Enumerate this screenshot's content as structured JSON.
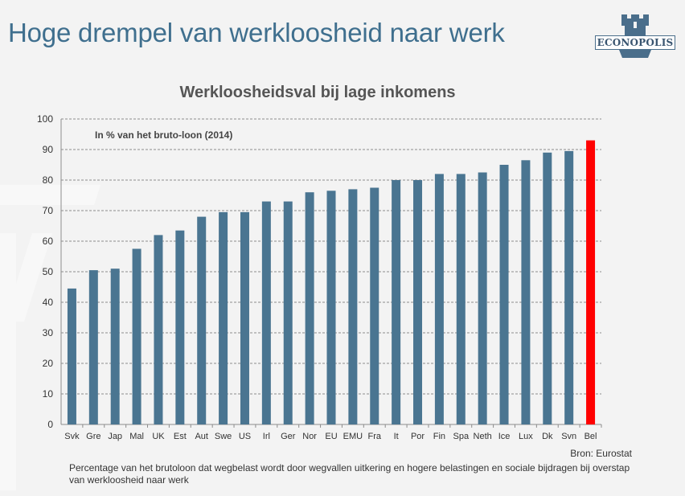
{
  "slide": {
    "title": "Hoge drempel van werkloosheid naar werk",
    "logo_text": "ECONOPOLIS",
    "source": "Bron: Eurostat",
    "footnote": "Percentage van het brutoloon dat wegbelast wordt door wegvallen uitkering en hogere belastingen en sociale bijdragen bij overstap van werkloosheid naar werk"
  },
  "colors": {
    "title": "#3f6f8e",
    "bar": "#4a7591",
    "highlight": "#ff0000",
    "logo": "#4a6e8b"
  },
  "chart_data": {
    "type": "bar",
    "title": "Werkloosheidsval bij lage inkomens",
    "subtitle": "In % van het bruto-loon (2014)",
    "xlabel": "",
    "ylabel": "",
    "ylim": [
      0,
      100
    ],
    "yticks": [
      0,
      10,
      20,
      30,
      40,
      50,
      60,
      70,
      80,
      90,
      100
    ],
    "grid": true,
    "legend": "none",
    "categories": [
      "Svk",
      "Gre",
      "Jap",
      "Mal",
      "UK",
      "Est",
      "Aut",
      "Swe",
      "US",
      "Irl",
      "Ger",
      "Nor",
      "EU",
      "EMU",
      "Fra",
      "It",
      "Por",
      "Fin",
      "Spa",
      "Neth",
      "Ice",
      "Lux",
      "Dk",
      "Svn",
      "Bel"
    ],
    "values": [
      44.5,
      50.5,
      51,
      57.5,
      62,
      63.5,
      68,
      69.5,
      69.5,
      73,
      73,
      76,
      76.5,
      77,
      77.5,
      80,
      80,
      82,
      82,
      82.5,
      85,
      86.5,
      89,
      89.5,
      93
    ],
    "highlight": [
      "Bel"
    ]
  }
}
